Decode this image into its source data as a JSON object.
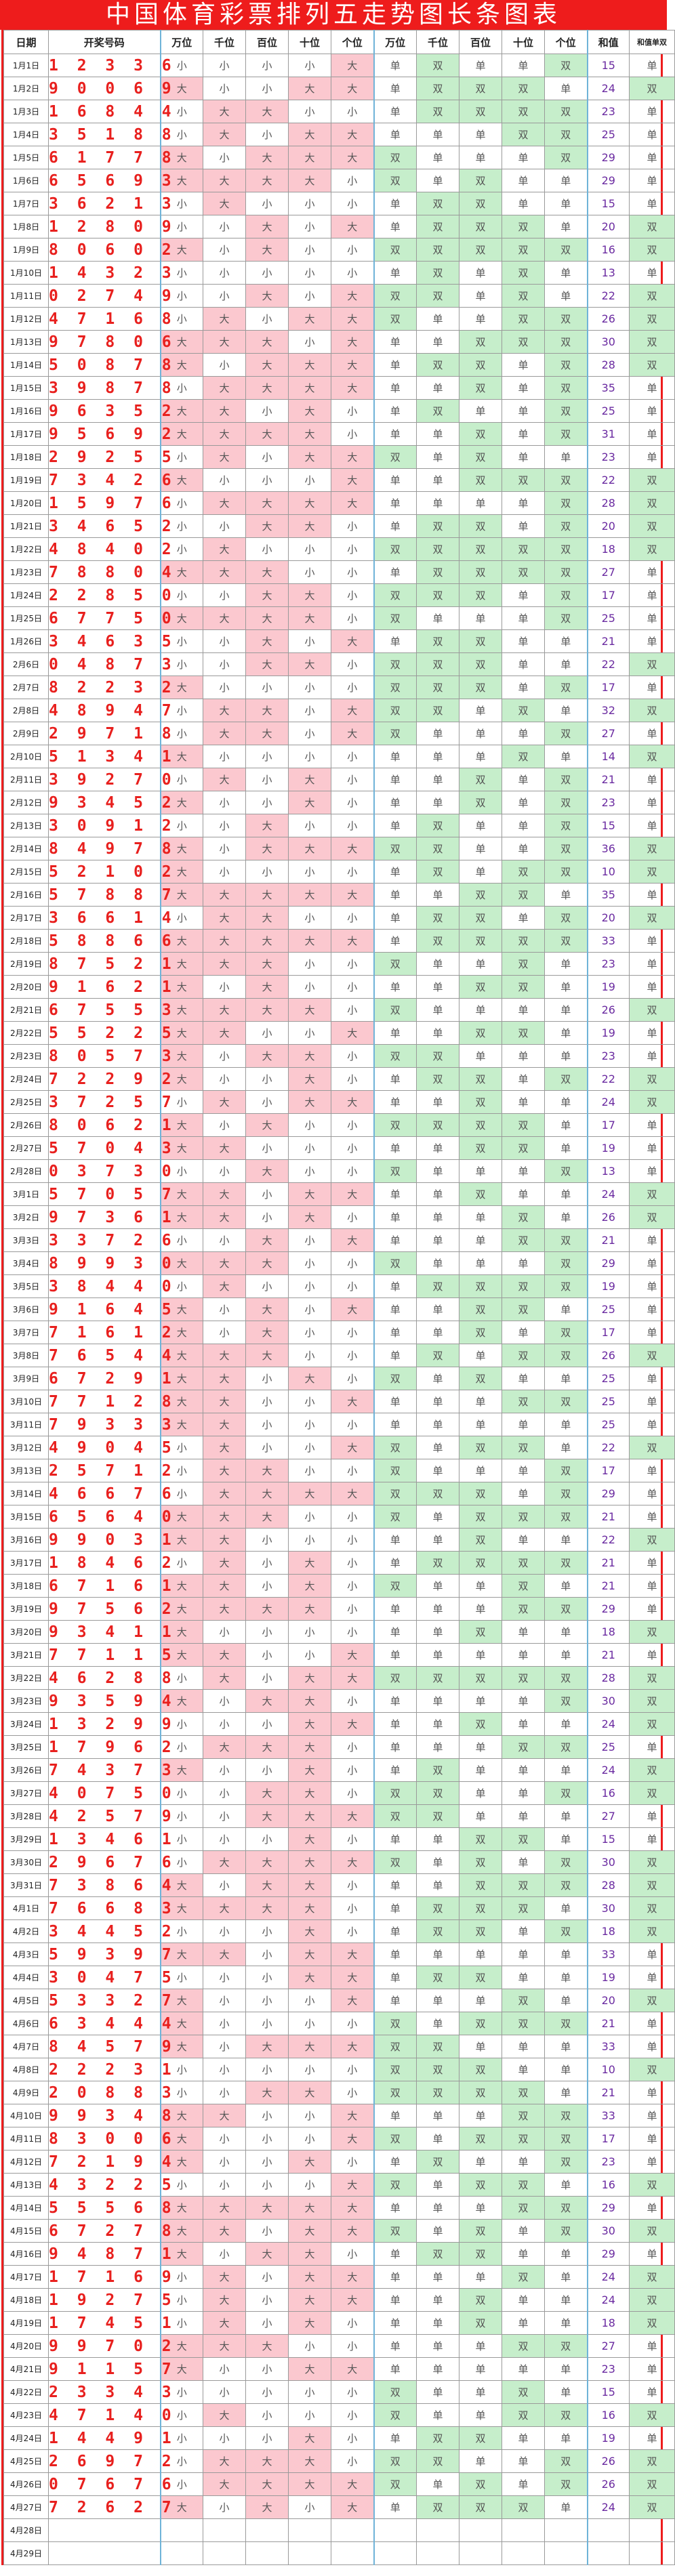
{
  "title": "中国体育彩票排列五走势图长条图表",
  "colors": {
    "title_bg": "#ee1c1c",
    "title_text": "#ffffff",
    "number_text": "#e8201e",
    "sum_text": "#6a2aa0",
    "big_even_highlight": "#fbc8cf",
    "odd_highlight": "#c6eecb"
  },
  "headers": {
    "date": "日期",
    "number": "开奖号码",
    "bs": [
      "万位",
      "千位",
      "百位",
      "十位",
      "个位"
    ],
    "oe": [
      "万位",
      "千位",
      "百位",
      "十位",
      "个位"
    ],
    "sum": "和值",
    "sum_oe": "和值单双"
  },
  "rows_raw": [
    "1月1日|12336",
    "1月2日|90069",
    "1月3日|16844",
    "1月4日|35188",
    "1月5日|61778",
    "1月6日|65693",
    "1月7日|36213",
    "1月8日|12809",
    "1月9日|80602",
    "1月10日|14323",
    "1月11日|02749",
    "1月12日|47168",
    "1月13日|97806",
    "1月14日|50878",
    "1月15日|39878",
    "1月16日|96352",
    "1月17日|95692",
    "1月18日|29255",
    "1月19日|73426",
    "1月20日|15976",
    "1月21日|34652",
    "1月22日|48402",
    "1月23日|78804",
    "1月24日|22850",
    "1月25日|67750",
    "1月26日|34635",
    "2月6日|04873",
    "2月7日|82232",
    "2月8日|48947",
    "2月9日|29718",
    "2月10日|51341",
    "2月11日|39270",
    "2月12日|93452",
    "2月13日|30912",
    "2月14日|84978",
    "2月15日|52102",
    "2月16日|57887",
    "2月17日|36614",
    "2月18日|58866",
    "2月19日|87521",
    "2月20日|91621",
    "2月21日|67553",
    "2月22日|55225",
    "2月23日|80573",
    "2月24日|72292",
    "2月25日|37257",
    "2月26日|80621",
    "2月27日|57043",
    "2月28日|03730",
    "3月1日|57057",
    "3月2日|97361",
    "3月3日|33726",
    "3月4日|89930",
    "3月5日|38440",
    "3月6日|91645",
    "3月7日|71612",
    "3月8日|76544",
    "3月9日|67291",
    "3月10日|77128",
    "3月11日|79333",
    "3月12日|49045",
    "3月13日|25712",
    "3月14日|46676",
    "3月15日|65640",
    "3月16日|99031",
    "3月17日|18462",
    "3月18日|67161",
    "3月19日|97562",
    "3月20日|93411",
    "3月21日|77115",
    "3月22日|46288",
    "3月23日|93594",
    "3月24日|13299",
    "3月25日|17962",
    "3月26日|74373",
    "3月27日|40750",
    "3月28日|42579",
    "3月29日|13461",
    "3月30日|29676",
    "3月31日|73864",
    "4月1日|76683",
    "4月2日|34452",
    "4月3日|59397",
    "4月4日|30475",
    "4月5日|53327",
    "4月6日|63444",
    "4月7日|84579",
    "4月8日|22231",
    "4月9日|20883",
    "4月10日|99348",
    "4月11日|83006",
    "4月12日|72194",
    "4月13日|43225",
    "4月14日|55568",
    "4月15日|67278",
    "4月16日|94871",
    "4月17日|17169",
    "4月18日|19275",
    "4月19日|17451",
    "4月20日|99702",
    "4月21日|91157",
    "4月22日|23343",
    "4月23日|47140",
    "4月24日|14491",
    "4月25日|26972",
    "4月26日|07676",
    "4月27日|72627",
    "4月28日|",
    "4月29日|"
  ],
  "labels": {
    "big": "大",
    "small": "小",
    "odd": "单",
    "even": "双"
  }
}
